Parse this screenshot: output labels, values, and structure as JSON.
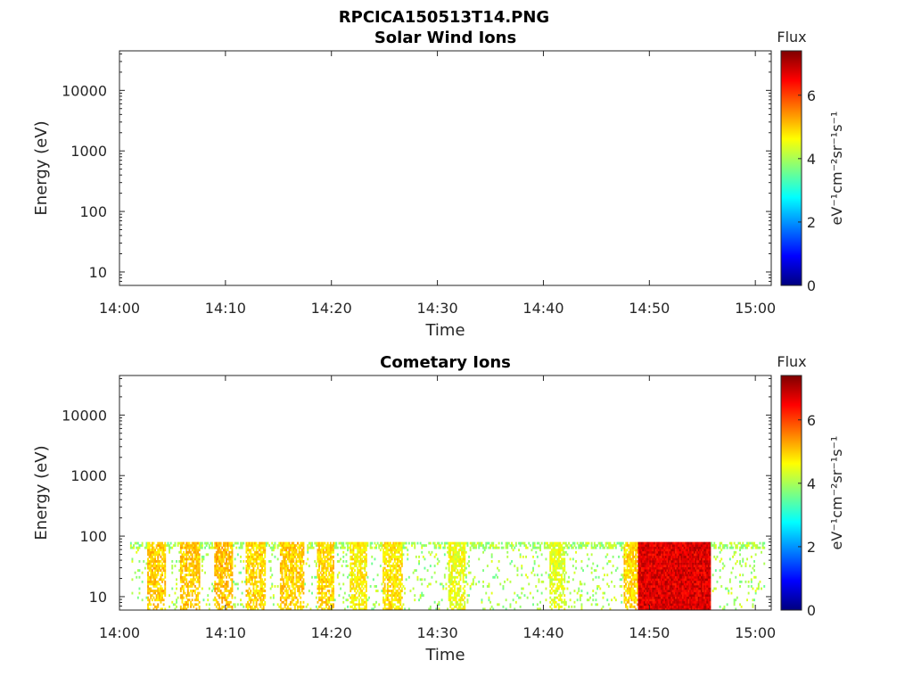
{
  "figure": {
    "title": "RPCICA150513T14.PNG",
    "colormap": [
      "#00007f",
      "#0000ff",
      "#007fff",
      "#00ffff",
      "#7fff7f",
      "#ffff00",
      "#ff7f00",
      "#ff0000",
      "#7f0000"
    ]
  },
  "chart_data": [
    {
      "type": "heatmap",
      "title": "Solar Wind Ions",
      "xlabel": "Time",
      "ylabel": "Energy (eV)",
      "x_ticks": [
        "14:00",
        "14:10",
        "14:20",
        "14:30",
        "14:40",
        "14:50",
        "15:00"
      ],
      "x_tick_minutes": [
        0,
        10,
        20,
        30,
        40,
        50,
        60
      ],
      "xlim_minutes": [
        0,
        61.5
      ],
      "y_scale": "log",
      "ylim": [
        6,
        45000
      ],
      "y_ticks": [
        10,
        100,
        1000,
        10000
      ],
      "y_tick_labels": [
        "10",
        "100",
        "1000",
        "10000"
      ],
      "colorbar": {
        "title": "Flux",
        "label": "eV⁻¹cm⁻²sr⁻¹s⁻¹",
        "range": [
          0,
          7.4
        ],
        "ticks": [
          0,
          2,
          4,
          6
        ],
        "tick_labels": [
          "0",
          "2",
          "4",
          "6"
        ]
      },
      "bursts": []
    },
    {
      "type": "heatmap",
      "title": "Cometary Ions",
      "xlabel": "Time",
      "ylabel": "Energy (eV)",
      "x_ticks": [
        "14:00",
        "14:10",
        "14:20",
        "14:30",
        "14:40",
        "14:50",
        "15:00"
      ],
      "x_tick_minutes": [
        0,
        10,
        20,
        30,
        40,
        50,
        60
      ],
      "xlim_minutes": [
        0,
        61.5
      ],
      "y_scale": "log",
      "ylim": [
        6,
        45000
      ],
      "y_ticks": [
        10,
        100,
        1000,
        10000
      ],
      "y_tick_labels": [
        "10",
        "100",
        "1000",
        "10000"
      ],
      "colorbar": {
        "title": "Flux",
        "label": "eV⁻¹cm⁻²sr⁻¹s⁻¹",
        "range": [
          0,
          7.4
        ],
        "ticks": [
          0,
          2,
          4,
          6
        ],
        "tick_labels": [
          "0",
          "2",
          "4",
          "6"
        ]
      },
      "data_time_range_minutes": [
        1,
        60.8
      ],
      "data_energy_range_ev": [
        6,
        80
      ],
      "background_flux": 3.8,
      "bursts": [
        {
          "start_min": 2.5,
          "end_min": 4.3,
          "flux": 5.0
        },
        {
          "start_min": 5.7,
          "end_min": 7.5,
          "flux": 5.0
        },
        {
          "start_min": 8.9,
          "end_min": 10.6,
          "flux": 5.1
        },
        {
          "start_min": 11.8,
          "end_min": 13.7,
          "flux": 4.9
        },
        {
          "start_min": 15.0,
          "end_min": 17.4,
          "flux": 5.0
        },
        {
          "start_min": 18.5,
          "end_min": 20.2,
          "flux": 4.9
        },
        {
          "start_min": 21.7,
          "end_min": 23.3,
          "flux": 4.7
        },
        {
          "start_min": 24.8,
          "end_min": 26.6,
          "flux": 4.8
        },
        {
          "start_min": 31.0,
          "end_min": 32.5,
          "flux": 4.5
        },
        {
          "start_min": 40.5,
          "end_min": 42.0,
          "flux": 4.4
        },
        {
          "start_min": 47.5,
          "end_min": 48.8,
          "flux": 4.9
        },
        {
          "start_min": 48.8,
          "end_min": 55.7,
          "flux": 6.7
        }
      ]
    }
  ]
}
